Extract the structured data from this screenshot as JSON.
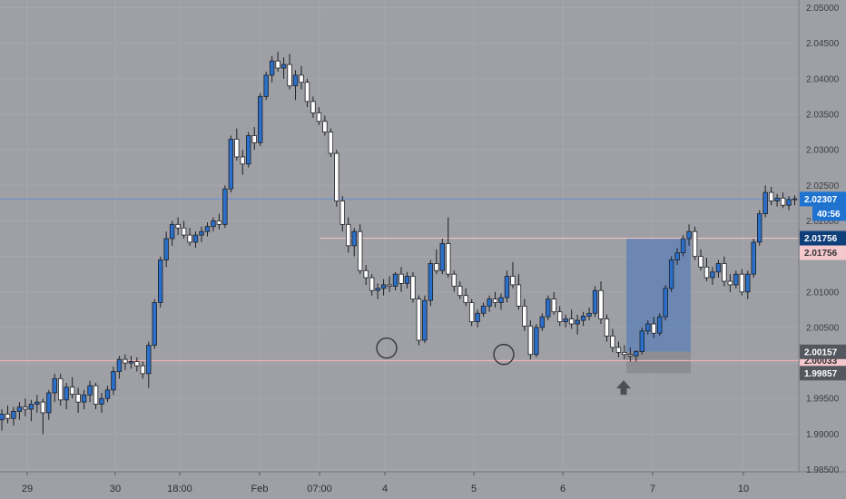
{
  "chart_data": {
    "type": "candlestick",
    "instrument": "",
    "title": "",
    "ylim": [
      1.98469,
      2.05057
    ],
    "y_ticks": [
      "2.05000",
      "2.04500",
      "2.04000",
      "2.03500",
      "2.03000",
      "2.02500",
      "2.02000",
      "2.01500",
      "2.01000",
      "2.00500",
      "2.00000",
      "1.99500",
      "1.99000",
      "1.98500"
    ],
    "x_ticks": [
      "29",
      "30",
      "18:00",
      "Feb",
      "07:00",
      "4",
      "5",
      "6",
      "7",
      "10"
    ],
    "price_lines": [
      {
        "value": 2.02307,
        "label": "2.02307",
        "color": "#6f93c9",
        "badge_bg": "#1f73d0",
        "badge_fg": "#ffffff"
      },
      {
        "value": 2.01756,
        "label": "2.01756",
        "color": "#f0c4c4",
        "badge_bg": "#0f3f7a",
        "badge_fg": "#ffffff"
      },
      {
        "value": 2.00033,
        "label": "2.00033",
        "color": "#f3b2b2",
        "badge_bg": "#f4c8cc",
        "badge_fg": "#333333"
      }
    ],
    "extra_labels": [
      {
        "value": 2.01756,
        "label": "2.01756",
        "bg": "#f4c8cc",
        "fg": "#333333",
        "offset": 1
      },
      {
        "value": 2.00157,
        "label": "2.00157",
        "bg": "#54575e",
        "fg": "#ffffff"
      },
      {
        "value": 1.99857,
        "label": "1.99857",
        "bg": "#54575e",
        "fg": "#ffffff"
      }
    ],
    "countdown": "40:56",
    "position_box": {
      "entry": 2.00157,
      "target": 2.01756,
      "stop": 1.99857
    },
    "annotations": [
      {
        "type": "circle",
        "at_value": 2.0021
      },
      {
        "type": "circle",
        "at_value": 2.0012
      },
      {
        "type": "arrow-up",
        "at_value": 1.9963
      }
    ],
    "candles": [
      [
        1.992,
        1.9935,
        1.9905,
        1.9928
      ],
      [
        1.9928,
        1.994,
        1.9915,
        1.9922
      ],
      [
        1.9922,
        1.9938,
        1.9912,
        1.9932
      ],
      [
        1.9932,
        1.9945,
        1.992,
        1.9938
      ],
      [
        1.9938,
        1.995,
        1.9925,
        1.9935
      ],
      [
        1.9935,
        1.9948,
        1.9918,
        1.9942
      ],
      [
        1.9942,
        1.9955,
        1.993,
        1.9945
      ],
      [
        1.9945,
        1.995,
        1.99,
        1.993
      ],
      [
        1.993,
        1.9962,
        1.992,
        1.9958
      ],
      [
        1.9958,
        1.9985,
        1.9945,
        1.9978
      ],
      [
        1.9978,
        1.9985,
        1.994,
        1.9948
      ],
      [
        1.9948,
        1.9972,
        1.9935,
        1.9966
      ],
      [
        1.9966,
        1.998,
        1.995,
        1.9956
      ],
      [
        1.9956,
        1.9965,
        1.993,
        1.9945
      ],
      [
        1.9945,
        1.9962,
        1.9935,
        1.9955
      ],
      [
        1.9955,
        1.9975,
        1.9945,
        1.9968
      ],
      [
        1.9968,
        1.9972,
        1.9935,
        1.9942
      ],
      [
        1.9942,
        1.9958,
        1.993,
        1.995
      ],
      [
        1.995,
        1.9968,
        1.9945,
        1.9962
      ],
      [
        1.9962,
        1.9995,
        1.9955,
        1.9988
      ],
      [
        1.9988,
        2.001,
        1.9978,
        2.0005
      ],
      [
        2.0005,
        2.0012,
        1.999,
        2.0
      ],
      [
        2.0,
        2.001,
        1.9992,
        2.0002
      ],
      [
        2.0002,
        2.0008,
        1.9988,
        1.9996
      ],
      [
        1.9996,
        2.0002,
        1.9978,
        1.9985
      ],
      [
        1.9985,
        2.003,
        1.9965,
        2.0025
      ],
      [
        2.0025,
        2.009,
        2.002,
        2.0085
      ],
      [
        2.0085,
        2.015,
        2.0078,
        2.0145
      ],
      [
        2.0145,
        2.0185,
        2.0135,
        2.0175
      ],
      [
        2.0175,
        2.02,
        2.0165,
        2.0195
      ],
      [
        2.0195,
        2.0205,
        2.018,
        2.019
      ],
      [
        2.019,
        2.02,
        2.0175,
        2.018
      ],
      [
        2.018,
        2.019,
        2.0165,
        2.017
      ],
      [
        2.017,
        2.0185,
        2.0162,
        2.018
      ],
      [
        2.018,
        2.0192,
        2.017,
        2.0185
      ],
      [
        2.0185,
        2.0198,
        2.0178,
        2.0192
      ],
      [
        2.0192,
        2.0205,
        2.0185,
        2.02
      ],
      [
        2.02,
        2.021,
        2.0188,
        2.0195
      ],
      [
        2.0195,
        2.025,
        2.019,
        2.0245
      ],
      [
        2.0245,
        2.032,
        2.024,
        2.0315
      ],
      [
        2.0315,
        2.033,
        2.0285,
        2.029
      ],
      [
        2.029,
        2.03,
        2.0265,
        2.028
      ],
      [
        2.028,
        2.0325,
        2.0275,
        2.032
      ],
      [
        2.032,
        2.0332,
        2.03,
        2.031
      ],
      [
        2.031,
        2.038,
        2.0305,
        2.0375
      ],
      [
        2.0375,
        2.041,
        2.037,
        2.0405
      ],
      [
        2.0405,
        2.0432,
        2.0395,
        2.0425
      ],
      [
        2.0425,
        2.0438,
        2.041,
        2.0415
      ],
      [
        2.0415,
        2.043,
        2.04,
        2.042
      ],
      [
        2.042,
        2.0435,
        2.0385,
        2.039
      ],
      [
        2.039,
        2.0412,
        2.037,
        2.0405
      ],
      [
        2.0405,
        2.0418,
        2.0385,
        2.0395
      ],
      [
        2.0395,
        2.04,
        2.036,
        2.0368
      ],
      [
        2.0368,
        2.0375,
        2.0345,
        2.0352
      ],
      [
        2.0352,
        2.036,
        2.0335,
        2.034
      ],
      [
        2.034,
        2.0348,
        2.032,
        2.0325
      ],
      [
        2.0325,
        2.033,
        2.029,
        2.0295
      ],
      [
        2.0295,
        2.03,
        2.022,
        2.0228
      ],
      [
        2.0228,
        2.0235,
        2.0185,
        2.0195
      ],
      [
        2.0195,
        2.0205,
        2.0155,
        2.0165
      ],
      [
        2.0165,
        2.019,
        2.015,
        2.0185
      ],
      [
        2.0185,
        2.0195,
        2.0125,
        2.013
      ],
      [
        2.013,
        2.0138,
        2.011,
        2.012
      ],
      [
        2.012,
        2.0125,
        2.0095,
        2.0102
      ],
      [
        2.0102,
        2.0112,
        2.009,
        2.0105
      ],
      [
        2.0105,
        2.0118,
        2.0095,
        2.011
      ],
      [
        2.011,
        2.0122,
        2.01,
        2.0108
      ],
      [
        2.0108,
        2.0128,
        2.0102,
        2.0125
      ],
      [
        2.0125,
        2.0135,
        2.01,
        2.0112
      ],
      [
        2.0112,
        2.0128,
        2.0105,
        2.0122
      ],
      [
        2.0122,
        2.0128,
        2.0085,
        2.009
      ],
      [
        2.009,
        2.0095,
        2.0025,
        2.0032
      ],
      [
        2.0032,
        2.0095,
        2.0028,
        2.0088
      ],
      [
        2.0088,
        2.0145,
        2.008,
        2.014
      ],
      [
        2.014,
        2.016,
        2.0125,
        2.013
      ],
      [
        2.013,
        2.0175,
        2.0125,
        2.0168
      ],
      [
        2.0168,
        2.0205,
        2.012,
        2.0125
      ],
      [
        2.0125,
        2.013,
        2.01,
        2.0108
      ],
      [
        2.0108,
        2.0115,
        2.009,
        2.0095
      ],
      [
        2.0095,
        2.0105,
        2.008,
        2.0085
      ],
      [
        2.0085,
        2.009,
        2.0052,
        2.0058
      ],
      [
        2.0058,
        2.0075,
        2.005,
        2.007
      ],
      [
        2.007,
        2.0085,
        2.0065,
        2.008
      ],
      [
        2.008,
        2.0095,
        2.0072,
        2.009
      ],
      [
        2.009,
        2.01,
        2.0078,
        2.0085
      ],
      [
        2.0085,
        2.0098,
        2.0075,
        2.0092
      ],
      [
        2.0092,
        2.013,
        2.0085,
        2.0122
      ],
      [
        2.0122,
        2.0142,
        2.0105,
        2.011
      ],
      [
        2.011,
        2.0125,
        2.0075,
        2.008
      ],
      [
        2.008,
        2.009,
        2.0045,
        2.0052
      ],
      [
        2.0052,
        2.006,
        2.0005,
        2.0012
      ],
      [
        2.0012,
        2.0055,
        2.0008,
        2.005
      ],
      [
        2.005,
        2.007,
        2.0045,
        2.0065
      ],
      [
        2.0065,
        2.0095,
        2.006,
        2.009
      ],
      [
        2.009,
        2.01,
        2.0068,
        2.0072
      ],
      [
        2.0072,
        2.008,
        2.0052,
        2.0058
      ],
      [
        2.0058,
        2.0068,
        2.005,
        2.0062
      ],
      [
        2.0062,
        2.0075,
        2.0048,
        2.0055
      ],
      [
        2.0055,
        2.0068,
        2.004,
        2.006
      ],
      [
        2.006,
        2.0072,
        2.0052,
        2.0066
      ],
      [
        2.0066,
        2.0078,
        2.006,
        2.007
      ],
      [
        2.007,
        2.0108,
        2.0065,
        2.0102
      ],
      [
        2.0102,
        2.0115,
        2.0055,
        2.0062
      ],
      [
        2.0062,
        2.0068,
        2.003,
        2.0038
      ],
      [
        2.0038,
        2.0048,
        2.0015,
        2.0022
      ],
      [
        2.0022,
        2.003,
        2.0008,
        2.0015
      ],
      [
        2.0015,
        2.0025,
        2.0005,
        2.0012
      ],
      [
        2.0012,
        2.0022,
        2.0002,
        2.001
      ],
      [
        2.001,
        2.0018,
        2.0002,
        2.0016
      ],
      [
        2.0016,
        2.005,
        2.0012,
        2.0045
      ],
      [
        2.0045,
        2.006,
        2.004,
        2.0055
      ],
      [
        2.0055,
        2.0065,
        2.0035,
        2.0042
      ],
      [
        2.0042,
        2.007,
        2.0038,
        2.0065
      ],
      [
        2.0065,
        2.011,
        2.006,
        2.0105
      ],
      [
        2.0105,
        2.015,
        2.01,
        2.0145
      ],
      [
        2.0145,
        2.0162,
        2.0138,
        2.0155
      ],
      [
        2.0155,
        2.018,
        2.015,
        2.0175
      ],
      [
        2.0175,
        2.0195,
        2.0165,
        2.0185
      ],
      [
        2.0185,
        2.0192,
        2.0145,
        2.015
      ],
      [
        2.015,
        2.016,
        2.013,
        2.0135
      ],
      [
        2.0135,
        2.0148,
        2.0115,
        2.012
      ],
      [
        2.012,
        2.0135,
        2.011,
        2.0128
      ],
      [
        2.0128,
        2.0145,
        2.012,
        2.014
      ],
      [
        2.014,
        2.015,
        2.0108,
        2.0115
      ],
      [
        2.0115,
        2.0125,
        2.01,
        2.011
      ],
      [
        2.011,
        2.013,
        2.0105,
        2.0125
      ],
      [
        2.0125,
        2.0132,
        2.0095,
        2.01
      ],
      [
        2.01,
        2.013,
        2.009,
        2.0125
      ],
      [
        2.0125,
        2.0175,
        2.012,
        2.017
      ],
      [
        2.017,
        2.0215,
        2.0165,
        2.021
      ],
      [
        2.021,
        2.025,
        2.0205,
        2.024
      ],
      [
        2.024,
        2.0248,
        2.0222,
        2.0228
      ],
      [
        2.0228,
        2.0238,
        2.022,
        2.0232
      ],
      [
        2.0232,
        2.024,
        2.0218,
        2.0222
      ],
      [
        2.0222,
        2.0235,
        2.0215,
        2.023
      ],
      [
        2.023,
        2.0236,
        2.0222,
        2.0231
      ]
    ]
  }
}
